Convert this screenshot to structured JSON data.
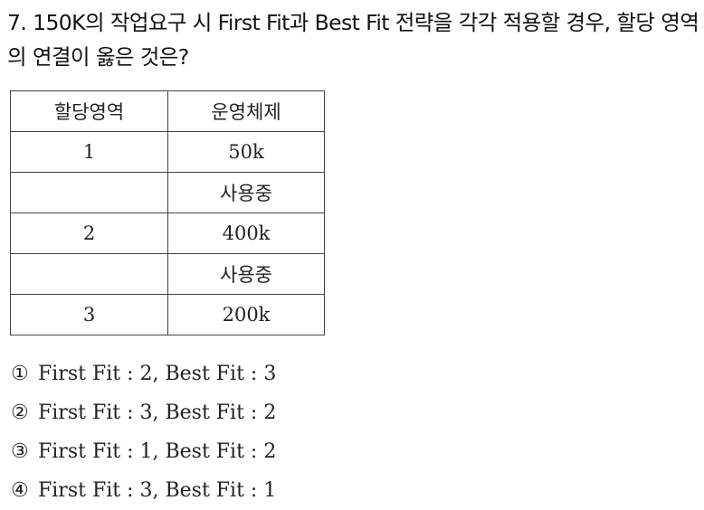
{
  "question": "7. 150K의 작업요구 시 First Fit과 Best Fit 전략을 각각 적용할 경우, 할당 영역의 연결이 옳은 것은?",
  "table": {
    "headers": [
      "할당영역",
      "운영체제"
    ],
    "rows": [
      [
        "1",
        "50k"
      ],
      [
        "",
        "사용중"
      ],
      [
        "2",
        "400k"
      ],
      [
        "",
        "사용중"
      ],
      [
        "3",
        "200k"
      ]
    ]
  },
  "options": [
    {
      "number": "①",
      "text": "First Fit : 2, Best Fit : 3"
    },
    {
      "number": "②",
      "text": "First Fit : 3, Best Fit : 2"
    },
    {
      "number": "③",
      "text": "First Fit : 1, Best Fit : 2"
    },
    {
      "number": "④",
      "text": "First Fit : 3, Best Fit : 1"
    }
  ]
}
